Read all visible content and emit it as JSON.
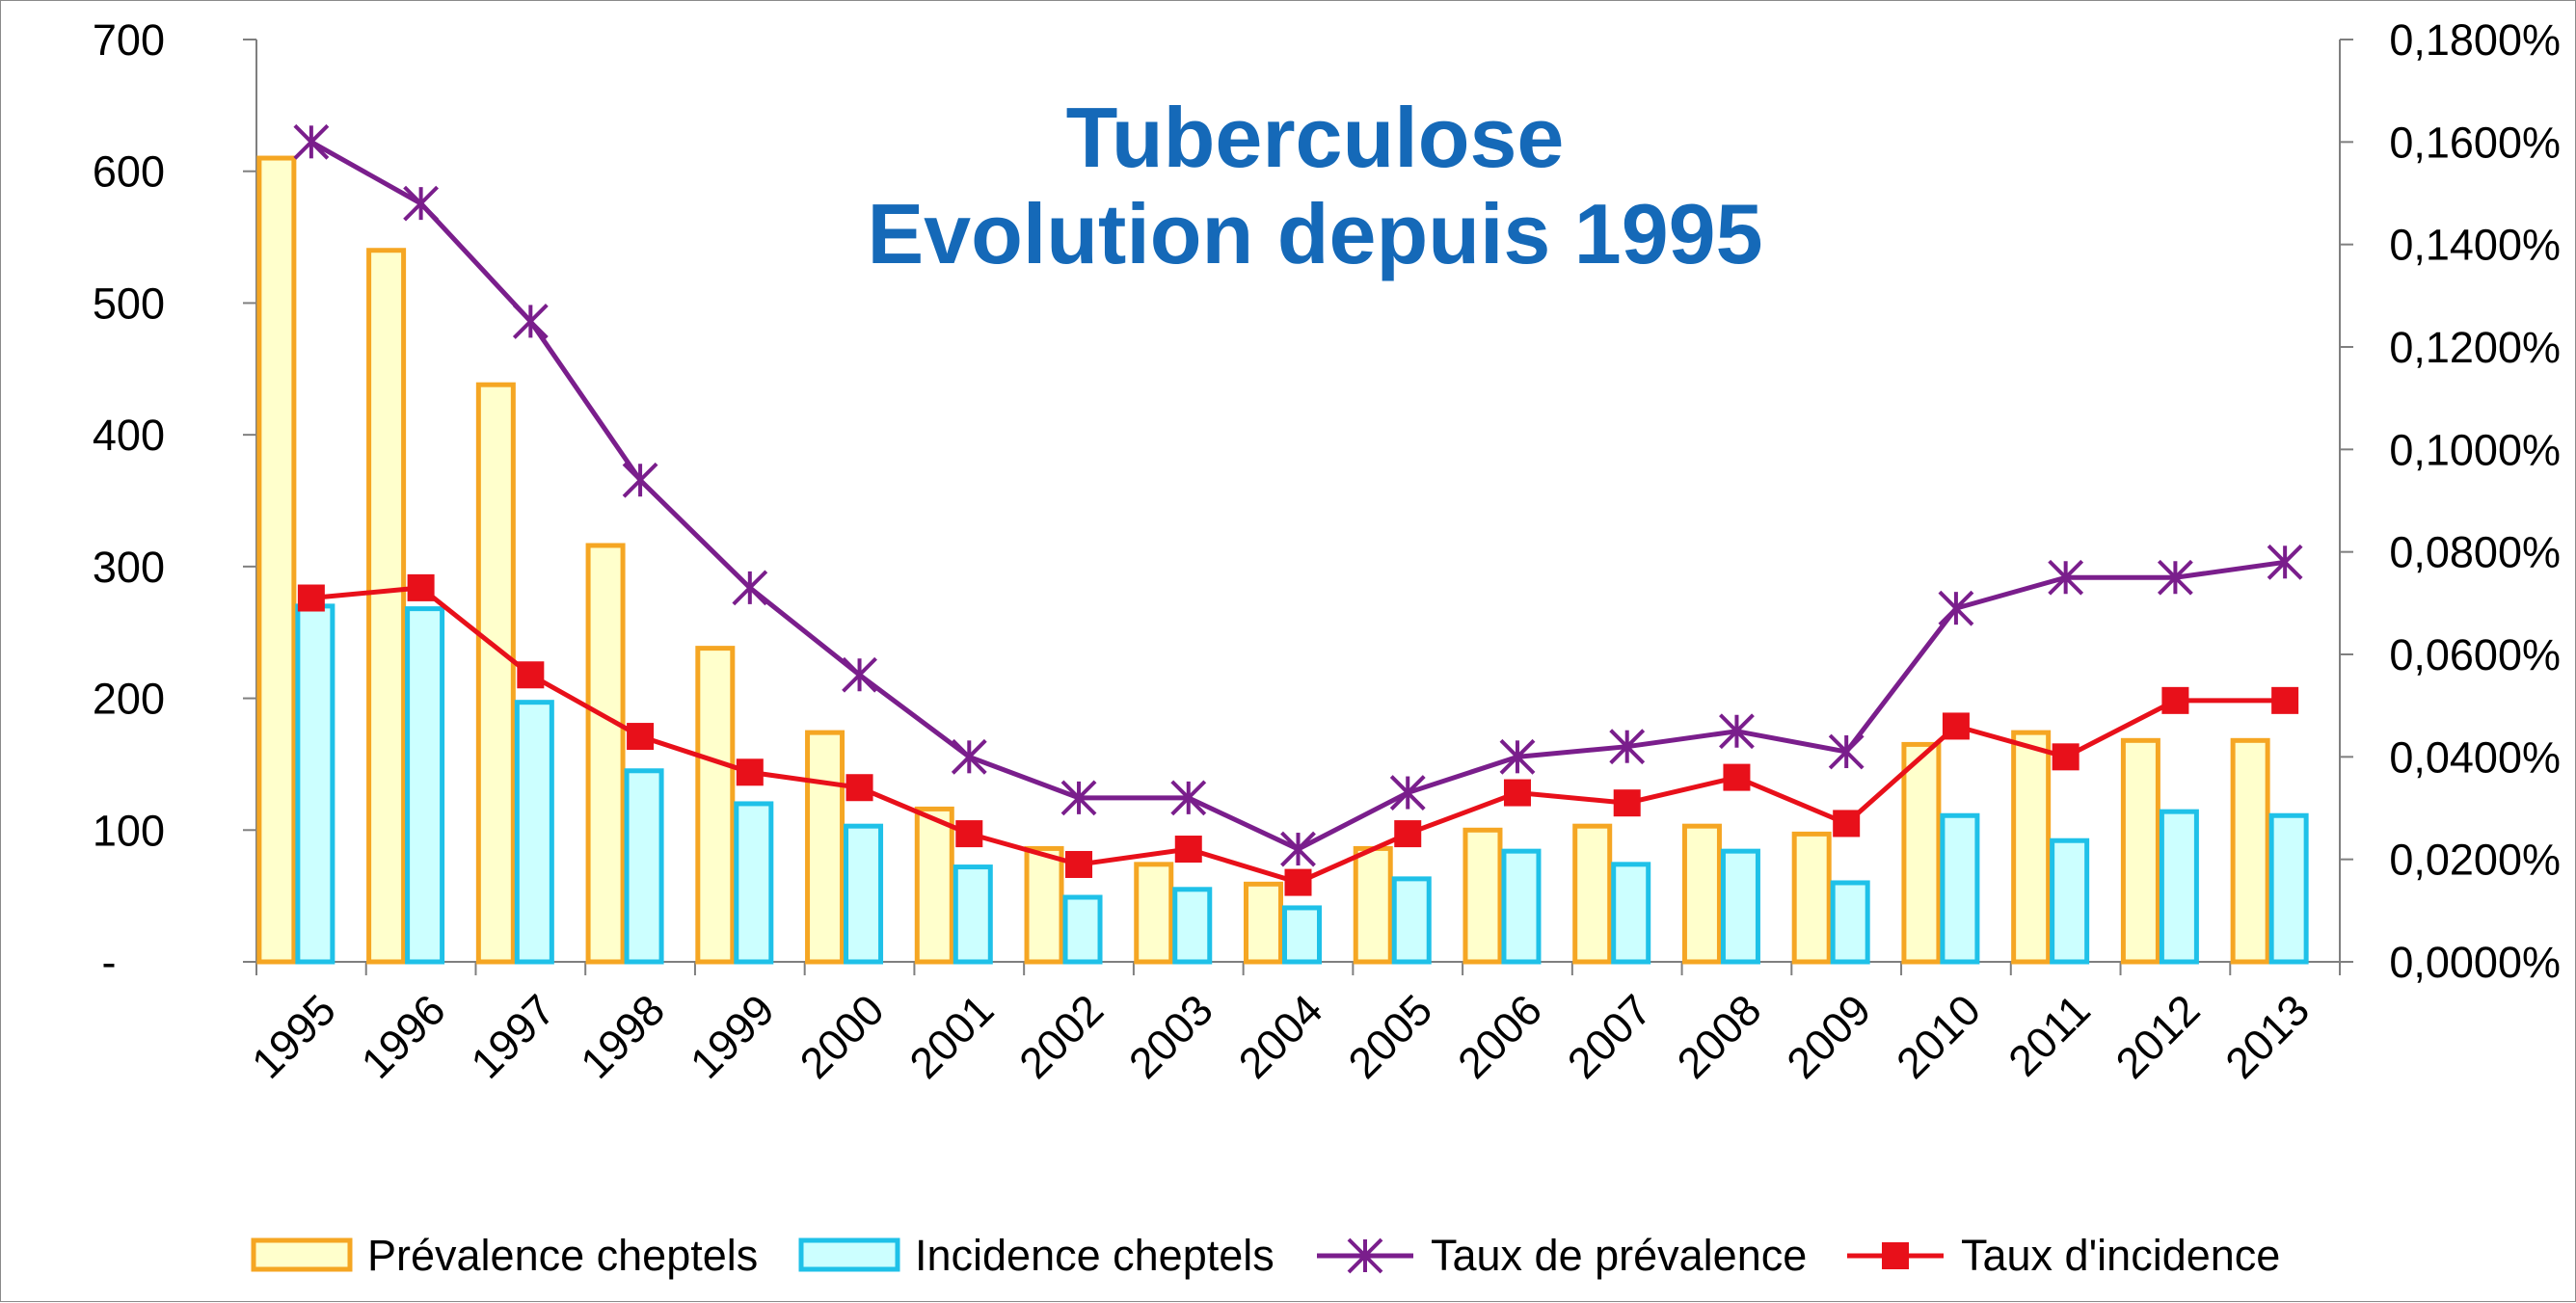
{
  "chart_data": {
    "type": "bar",
    "title_line1": "Tuberculose",
    "title_line2": "Evolution depuis 1995",
    "categories": [
      "1995",
      "1996",
      "1997",
      "1998",
      "1999",
      "2000",
      "2001",
      "2002",
      "2003",
      "2004",
      "2005",
      "2006",
      "2007",
      "2008",
      "2009",
      "2010",
      "2011",
      "2012",
      "2013"
    ],
    "left_axis": {
      "ylim": [
        0,
        700
      ],
      "ticks": [
        "-",
        "100",
        "200",
        "300",
        "400",
        "500",
        "600",
        "700"
      ]
    },
    "right_axis": {
      "ylim": [
        0,
        0.18
      ],
      "ticks": [
        "0,0000%",
        "0,0200%",
        "0,0400%",
        "0,0600%",
        "0,0800%",
        "0,1000%",
        "0,1200%",
        "0,1400%",
        "0,1600%",
        "0,1800%"
      ]
    },
    "series": [
      {
        "name": "Prévalence cheptels",
        "type": "bar",
        "axis": "left",
        "fill": "#ffffcc",
        "stroke": "#f5a623",
        "values": [
          610,
          540,
          438,
          316,
          238,
          174,
          116,
          86,
          74,
          59,
          86,
          100,
          103,
          103,
          97,
          165,
          174,
          168,
          168
        ]
      },
      {
        "name": "Incidence cheptels",
        "type": "bar",
        "axis": "left",
        "fill": "#ccffff",
        "stroke": "#1fc1e8",
        "values": [
          270,
          268,
          197,
          145,
          120,
          103,
          72,
          49,
          55,
          41,
          63,
          84,
          74,
          84,
          60,
          111,
          92,
          114,
          111
        ]
      },
      {
        "name": "Taux de prévalence",
        "type": "line",
        "axis": "right",
        "color": "#7a1e8c",
        "marker": "star",
        "values": [
          0.16,
          0.148,
          0.125,
          0.094,
          0.073,
          0.056,
          0.04,
          0.032,
          0.032,
          0.022,
          0.033,
          0.04,
          0.042,
          0.045,
          0.041,
          0.069,
          0.075,
          0.075,
          0.078
        ]
      },
      {
        "name": "Taux d'incidence",
        "type": "line",
        "axis": "right",
        "color": "#e8101a",
        "marker": "square",
        "values": [
          0.071,
          0.073,
          0.056,
          0.044,
          0.037,
          0.034,
          0.025,
          0.019,
          0.022,
          0.0155,
          0.025,
          0.033,
          0.031,
          0.036,
          0.027,
          0.046,
          0.04,
          0.051,
          0.051
        ]
      }
    ]
  }
}
